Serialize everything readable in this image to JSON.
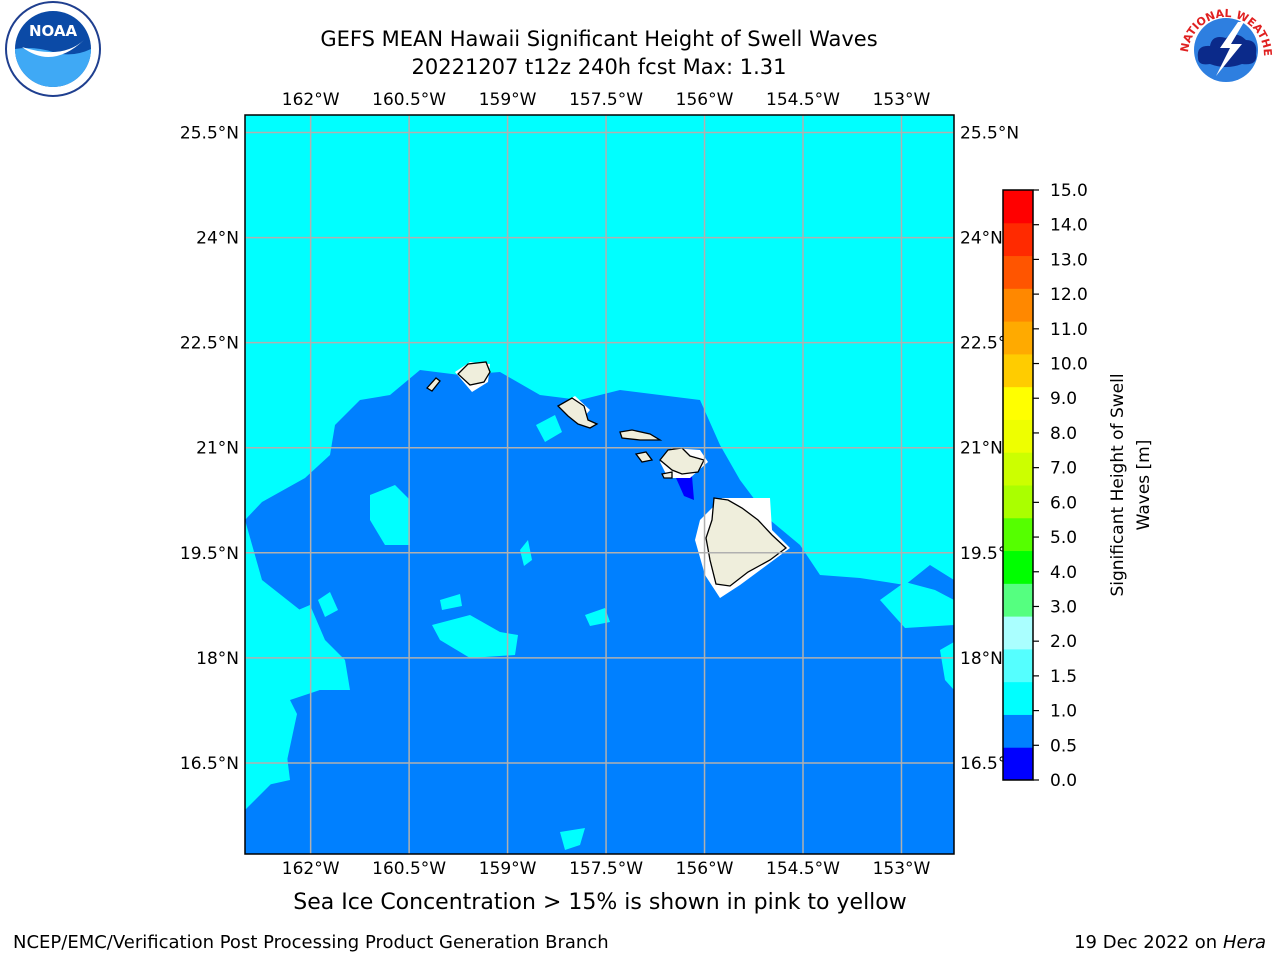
{
  "title_line1": "GEFS MEAN Hawaii Significant Height of Swell Waves",
  "title_line2": "20221207 t12z 240h fcst   Max: 1.31",
  "note": "Sea Ice Concentration > 15% is shown in pink to yellow",
  "footer_left": "NCEP/EMC/Verification Post Processing Product Generation Branch",
  "footer_right_date": "19 Dec 2022 on",
  "footer_right_host": "Hera",
  "map": {
    "lon_range": [
      -163,
      -152.2
    ],
    "lat_range": [
      15.2,
      25.75
    ],
    "lon_ticks": [
      {
        "value": -162,
        "label": "162°W"
      },
      {
        "value": -160.5,
        "label": "160.5°W"
      },
      {
        "value": -159,
        "label": "159°W"
      },
      {
        "value": -157.5,
        "label": "157.5°W"
      },
      {
        "value": -156,
        "label": "156°W"
      },
      {
        "value": -154.5,
        "label": "154.5°W"
      },
      {
        "value": -153,
        "label": "153°W"
      }
    ],
    "lat_ticks": [
      {
        "value": 25.5,
        "label": "25.5°N"
      },
      {
        "value": 24,
        "label": "24°N"
      },
      {
        "value": 22.5,
        "label": "22.5°N"
      },
      {
        "value": 21,
        "label": "21°N"
      },
      {
        "value": 19.5,
        "label": "19.5°N"
      },
      {
        "value": 18,
        "label": "18°N"
      },
      {
        "value": 16.5,
        "label": "16.5°N"
      }
    ],
    "colors": {
      "high_swell": "#00ffff",
      "mid_swell": "#0080ff",
      "low_swell": "#0000ff",
      "land": "#efeedc",
      "gridline": "#b0b0b0"
    }
  },
  "colorbar": {
    "label_line1": "Significant Height of Swell",
    "label_line2": "Waves [m]",
    "levels": [
      "0.0",
      "0.5",
      "1.0",
      "1.5",
      "2.0",
      "3.0",
      "4.0",
      "5.0",
      "6.0",
      "7.0",
      "8.0",
      "9.0",
      "10.0",
      "11.0",
      "12.0",
      "13.0",
      "14.0",
      "15.0"
    ],
    "colors": [
      "#0000ff",
      "#0080ff",
      "#00ffff",
      "#55ffff",
      "#aaffff",
      "#55ff80",
      "#00ff00",
      "#55ff00",
      "#aaff00",
      "#ccff00",
      "#eeff00",
      "#ffff00",
      "#ffcc00",
      "#ffaa00",
      "#ff8800",
      "#ff5500",
      "#ff2a00",
      "#ff0000"
    ]
  },
  "logos": {
    "left": "NOAA",
    "right": "NATIONAL WEATHER SERVICE"
  }
}
